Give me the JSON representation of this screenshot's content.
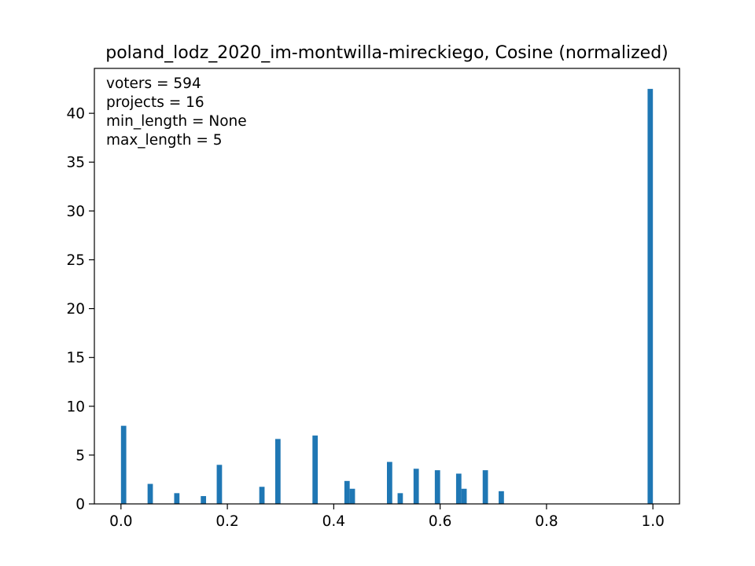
{
  "chart_data": {
    "type": "bar",
    "title": "poland_lodz_2020_im-montwilla-mireckiego, Cosine (normalized)",
    "xlabel": "",
    "ylabel": "",
    "xlim": [
      -0.05,
      1.05
    ],
    "ylim": [
      0,
      44.6
    ],
    "bar_width": 0.01,
    "color": "#1f77b4",
    "grid": false,
    "x_ticks": [
      0.0,
      0.2,
      0.4,
      0.6,
      0.8,
      1.0
    ],
    "x_tick_labels": [
      "0.0",
      "0.2",
      "0.4",
      "0.6",
      "0.8",
      "1.0"
    ],
    "y_ticks": [
      0,
      5,
      10,
      15,
      20,
      25,
      30,
      35,
      40
    ],
    "y_tick_labels": [
      "0",
      "5",
      "10",
      "15",
      "20",
      "25",
      "30",
      "35",
      "40"
    ],
    "annotations": [
      "voters = 594",
      "projects = 16",
      "min_length = None",
      "max_length = 5"
    ],
    "bars": [
      {
        "x": 0.005,
        "value": 8.0
      },
      {
        "x": 0.055,
        "value": 2.05
      },
      {
        "x": 0.105,
        "value": 1.1
      },
      {
        "x": 0.155,
        "value": 0.8
      },
      {
        "x": 0.185,
        "value": 4.0
      },
      {
        "x": 0.265,
        "value": 1.75
      },
      {
        "x": 0.295,
        "value": 6.65
      },
      {
        "x": 0.365,
        "value": 7.0
      },
      {
        "x": 0.425,
        "value": 2.35
      },
      {
        "x": 0.435,
        "value": 1.55
      },
      {
        "x": 0.505,
        "value": 4.3
      },
      {
        "x": 0.525,
        "value": 1.1
      },
      {
        "x": 0.555,
        "value": 3.6
      },
      {
        "x": 0.595,
        "value": 3.45
      },
      {
        "x": 0.635,
        "value": 3.1
      },
      {
        "x": 0.645,
        "value": 1.55
      },
      {
        "x": 0.685,
        "value": 3.45
      },
      {
        "x": 0.715,
        "value": 1.3
      },
      {
        "x": 0.995,
        "value": 42.5
      }
    ]
  }
}
